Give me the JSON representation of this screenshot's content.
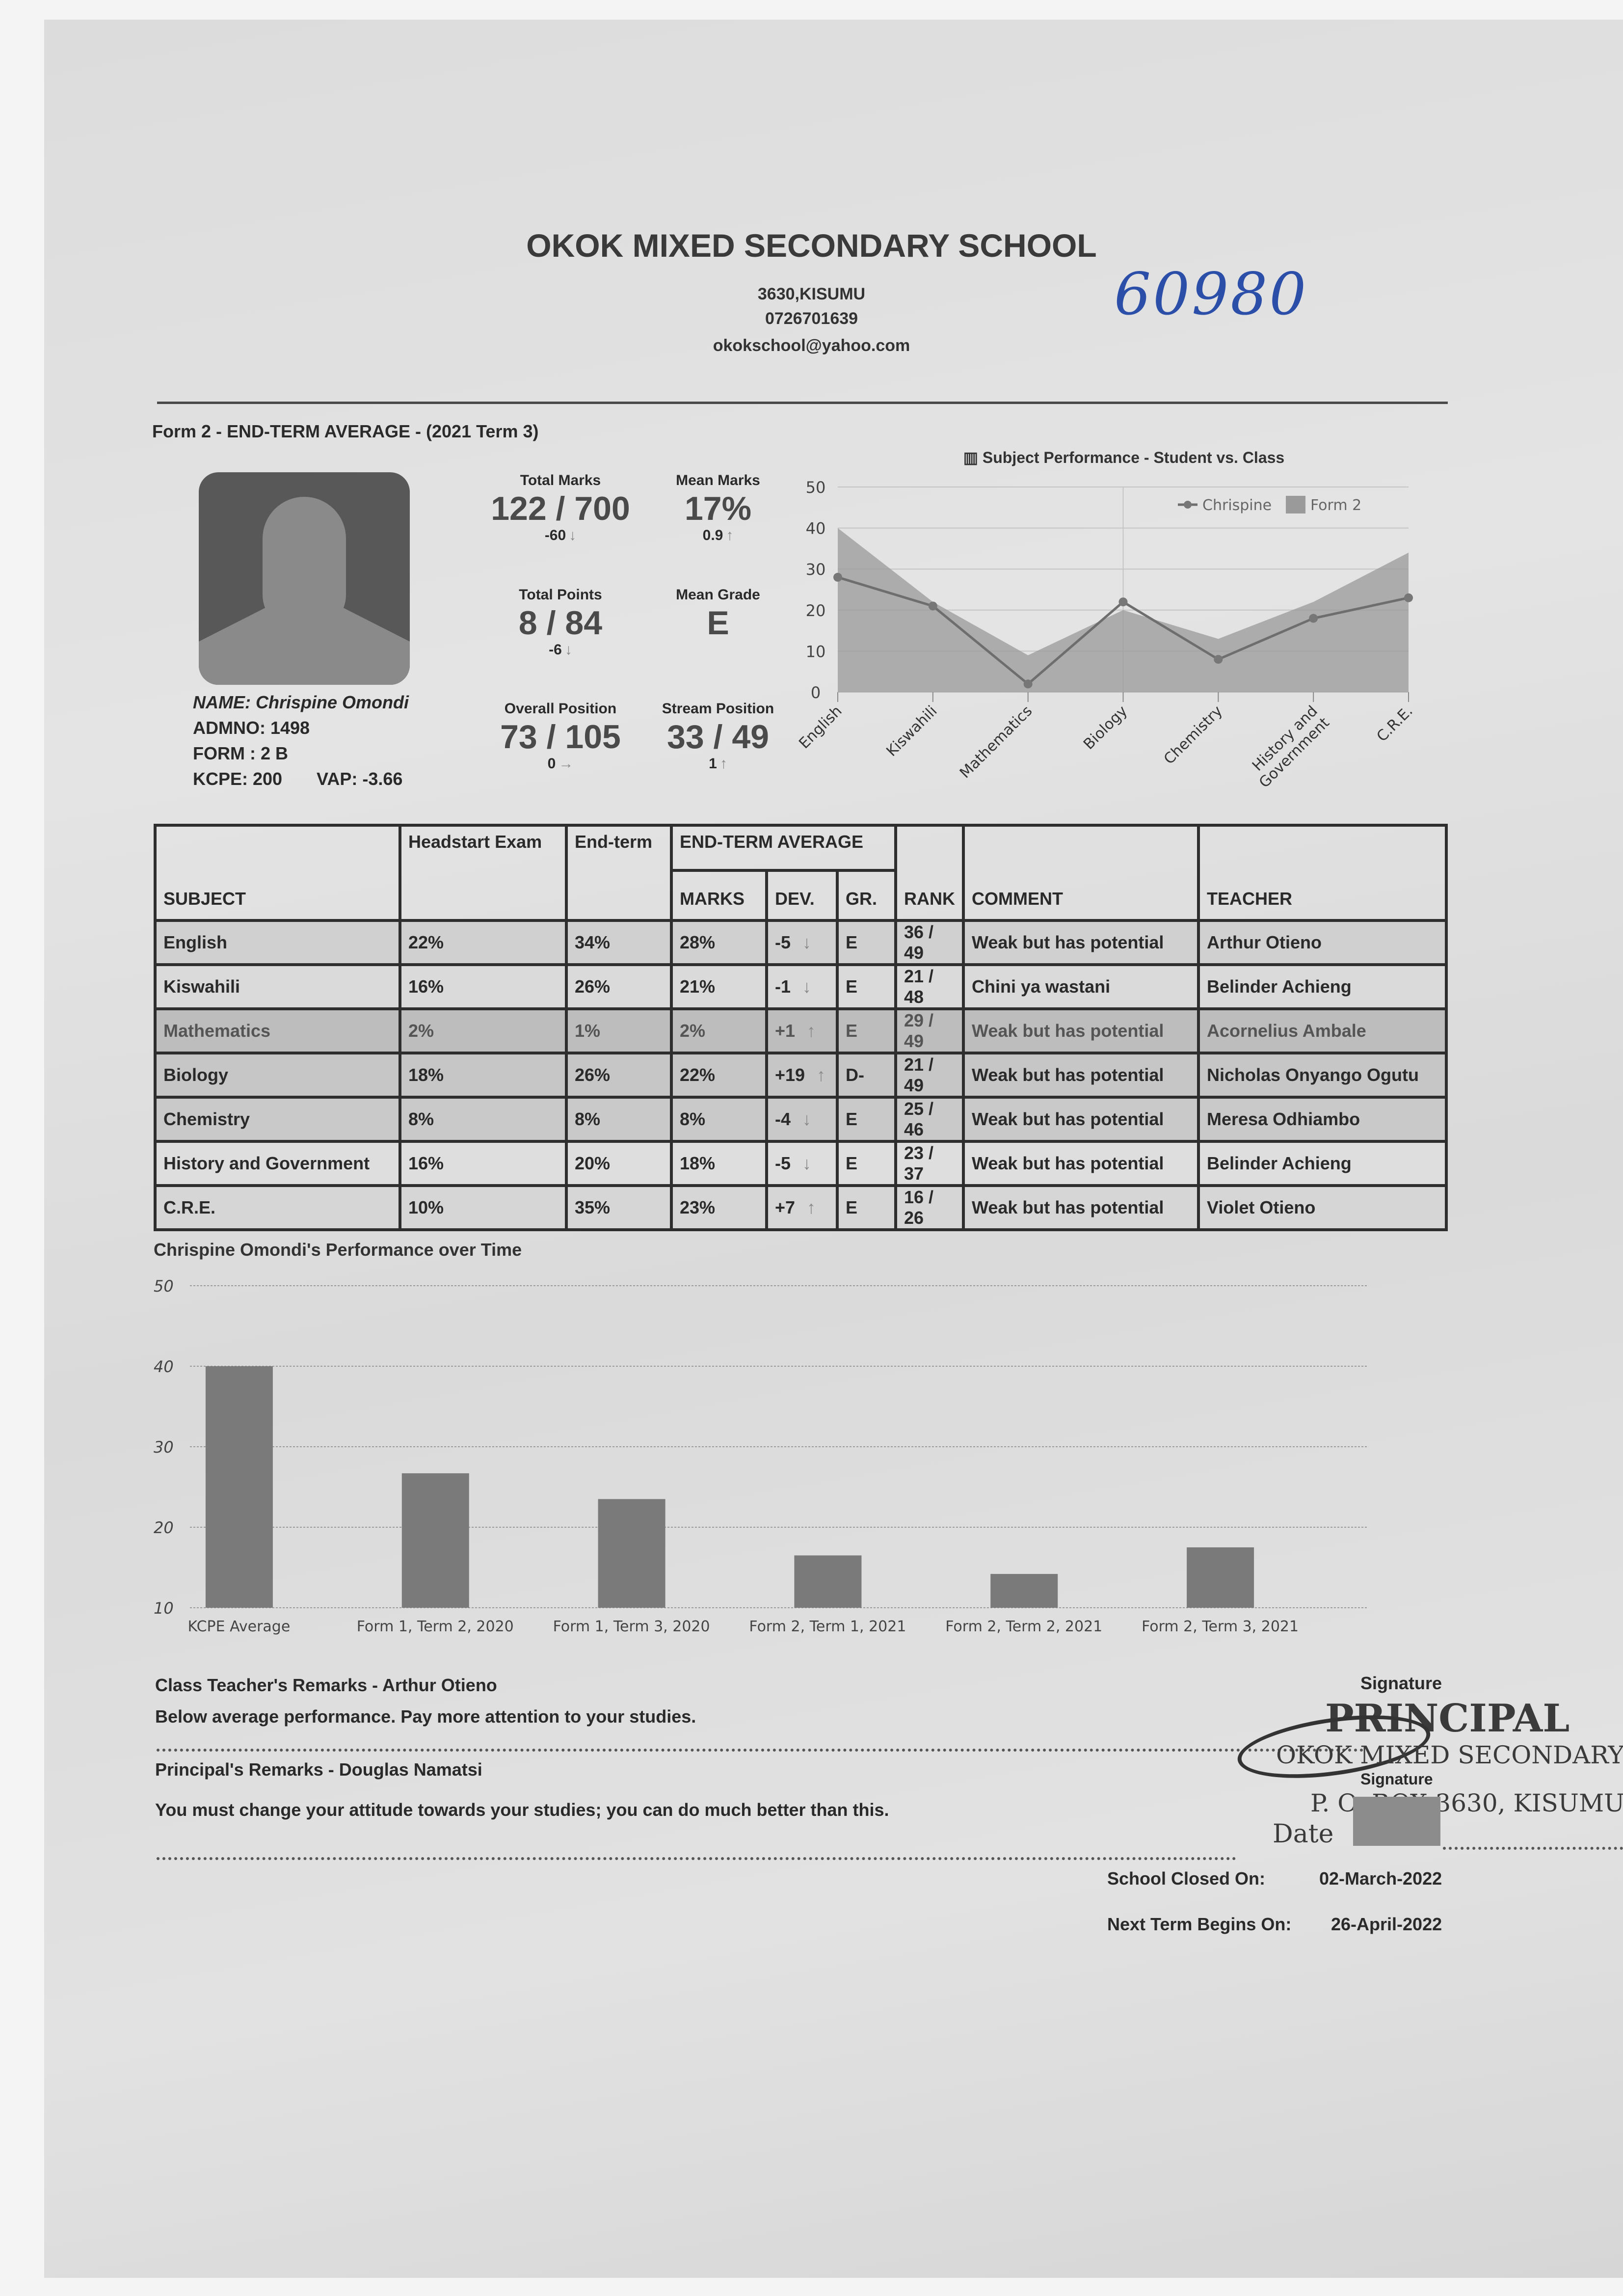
{
  "school": {
    "name": "OKOK MIXED SECONDARY SCHOOL",
    "address": "3630,KISUMU",
    "phone": "0726701639",
    "email": "okokschool@yahoo.com",
    "handwritten_number": "60980"
  },
  "report_title": "Form 2 - END-TERM AVERAGE - (2021 Term 3)",
  "student": {
    "name": "NAME: Chrispine Omondi",
    "admno": "ADMNO: 1498",
    "form": "FORM : 2 B",
    "kcpe": "KCPE: 200",
    "vap": "VAP: -3.66"
  },
  "stats": [
    {
      "label": "Total Marks",
      "value": "122 / 700",
      "delta": "-60",
      "arrow": "↓"
    },
    {
      "label": "Mean Marks",
      "value": "17%",
      "delta": "0.9",
      "arrow": "↑"
    },
    {
      "label": "Total Points",
      "value": "8 / 84",
      "delta": "-6",
      "arrow": "↓"
    },
    {
      "label": "Mean Grade",
      "value": "E",
      "delta": "",
      "arrow": ""
    },
    {
      "label": "Overall Position",
      "value": "73 / 105",
      "delta": "0",
      "arrow": "→"
    },
    {
      "label": "Stream Position",
      "value": "33 / 49",
      "delta": "1",
      "arrow": "↑"
    }
  ],
  "table": {
    "headers": {
      "subject": "SUBJECT",
      "headstart": "Headstart Exam",
      "endterm": "End-term",
      "average_group": "END-TERM AVERAGE",
      "marks": "MARKS",
      "dev": "DEV.",
      "grade": "GR.",
      "rank": "RANK",
      "comment": "COMMENT",
      "teacher": "TEACHER"
    },
    "rows": [
      {
        "subject": "English",
        "headstart": "22%",
        "endterm": "34%",
        "marks": "28%",
        "dev": "-5",
        "dev_arrow": "↓",
        "grade": "E",
        "rank": "36 / 49",
        "comment": "Weak but has potential",
        "teacher": "Arthur Otieno"
      },
      {
        "subject": "Kiswahili",
        "headstart": "16%",
        "endterm": "26%",
        "marks": "21%",
        "dev": "-1",
        "dev_arrow": "↓",
        "grade": "E",
        "rank": "21 / 48",
        "comment": "Chini ya wastani",
        "teacher": "Belinder Achieng"
      },
      {
        "subject": "Mathematics",
        "headstart": "2%",
        "endterm": "1%",
        "marks": "2%",
        "dev": "+1",
        "dev_arrow": "↑",
        "grade": "E",
        "rank": "29 / 49",
        "comment": "Weak but has potential",
        "teacher": "Acornelius Ambale"
      },
      {
        "subject": "Biology",
        "headstart": "18%",
        "endterm": "26%",
        "marks": "22%",
        "dev": "+19",
        "dev_arrow": "↑",
        "grade": "D-",
        "rank": "21 / 49",
        "comment": "Weak but has potential",
        "teacher": "Nicholas Onyango Ogutu"
      },
      {
        "subject": "Chemistry",
        "headstart": "8%",
        "endterm": "8%",
        "marks": "8%",
        "dev": "-4",
        "dev_arrow": "↓",
        "grade": "E",
        "rank": "25 / 46",
        "comment": "Weak but has potential",
        "teacher": "Meresa Odhiambo"
      },
      {
        "subject": "History and Government",
        "headstart": "16%",
        "endterm": "20%",
        "marks": "18%",
        "dev": "-5",
        "dev_arrow": "↓",
        "grade": "E",
        "rank": "23 / 37",
        "comment": "Weak but has potential",
        "teacher": "Belinder Achieng"
      },
      {
        "subject": "C.R.E.",
        "headstart": "10%",
        "endterm": "35%",
        "marks": "23%",
        "dev": "+7",
        "dev_arrow": "↑",
        "grade": "E",
        "rank": "16 / 26",
        "comment": "Weak but has potential",
        "teacher": "Violet Otieno"
      }
    ]
  },
  "chart_data": [
    {
      "type": "line",
      "title": "Subject Performance - Student vs. Class",
      "title_icon": "bar-chart-icon",
      "categories": [
        "English",
        "Kiswahili",
        "Mathematics",
        "Biology",
        "Chemistry",
        "History and Government",
        "C.R.E."
      ],
      "category_tick_labels": [
        "English",
        "Kiswahili",
        "Mathematics",
        "Biology",
        "Chemistry",
        "History and|Government",
        "C.R.E."
      ],
      "series": [
        {
          "name": "Chrispine",
          "type": "line",
          "color": "#6e6e6e",
          "values": [
            28,
            21,
            2,
            22,
            8,
            18,
            23
          ]
        },
        {
          "name": "Form 2",
          "type": "area",
          "color": "#9a9a9a",
          "values": [
            40,
            22,
            9,
            20,
            13,
            22,
            34
          ]
        }
      ],
      "ylim": [
        0,
        50
      ],
      "yticks": [
        0,
        10,
        20,
        30,
        40,
        50
      ],
      "grid": true,
      "legend": "top-right"
    },
    {
      "type": "bar",
      "title": "Chrispine Omondi's Performance over Time",
      "categories": [
        "KCPE Average",
        "Form 1, Term 2, 2020",
        "Form 1, Term 3, 2020",
        "Form 2, Term 1, 2021",
        "Form 2, Term 2, 2021",
        "Form 2, Term 3, 2021"
      ],
      "values": [
        40,
        26.7,
        23.5,
        16.5,
        14.2,
        17.5
      ],
      "ylim": [
        10,
        50
      ],
      "yticks": [
        10,
        20,
        30,
        40,
        50
      ],
      "grid": true,
      "color": "#7a7a7a"
    }
  ],
  "remarks": {
    "class_teacher_heading": "Class Teacher's Remarks - Arthur Otieno",
    "class_teacher_text": "Below average performance. Pay more attention to your studies.",
    "principal_heading": "Principal's Remarks - Douglas Namatsi",
    "principal_text": "You must change your attitude towards your studies; you can do much better than this.",
    "signature_label": "Signature"
  },
  "stamp": {
    "line1": "PRINCIPAL",
    "line2": "OKOK MIXED SECONDARY",
    "line3": "P. O. BOX 3630, KISUMU",
    "line4": "Date"
  },
  "dates": {
    "closed_label": "School Closed On:",
    "closed_value": "02-March-2022",
    "next_label": "Next Term Begins On:",
    "next_value": "26-April-2022"
  }
}
